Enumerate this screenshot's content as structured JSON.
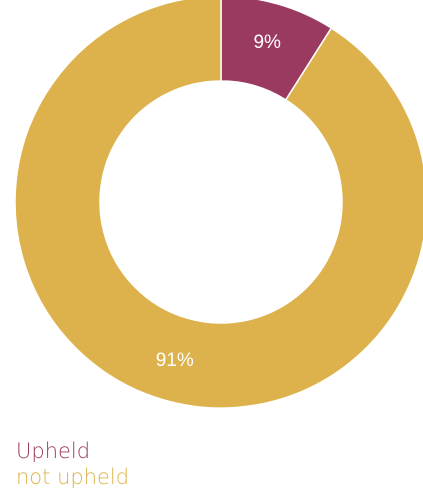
{
  "chart_data": {
    "type": "pie",
    "title": "",
    "categories": [
      "Upheld",
      "not upheld"
    ],
    "values": [
      9,
      91
    ],
    "data_labels": [
      "9%",
      "91%"
    ],
    "colors": [
      "#9B3A60",
      "#DDB24C"
    ],
    "donut": true,
    "legend": {
      "placement": "bottom-left",
      "entries": [
        "Upheld",
        "not upheld"
      ]
    }
  }
}
